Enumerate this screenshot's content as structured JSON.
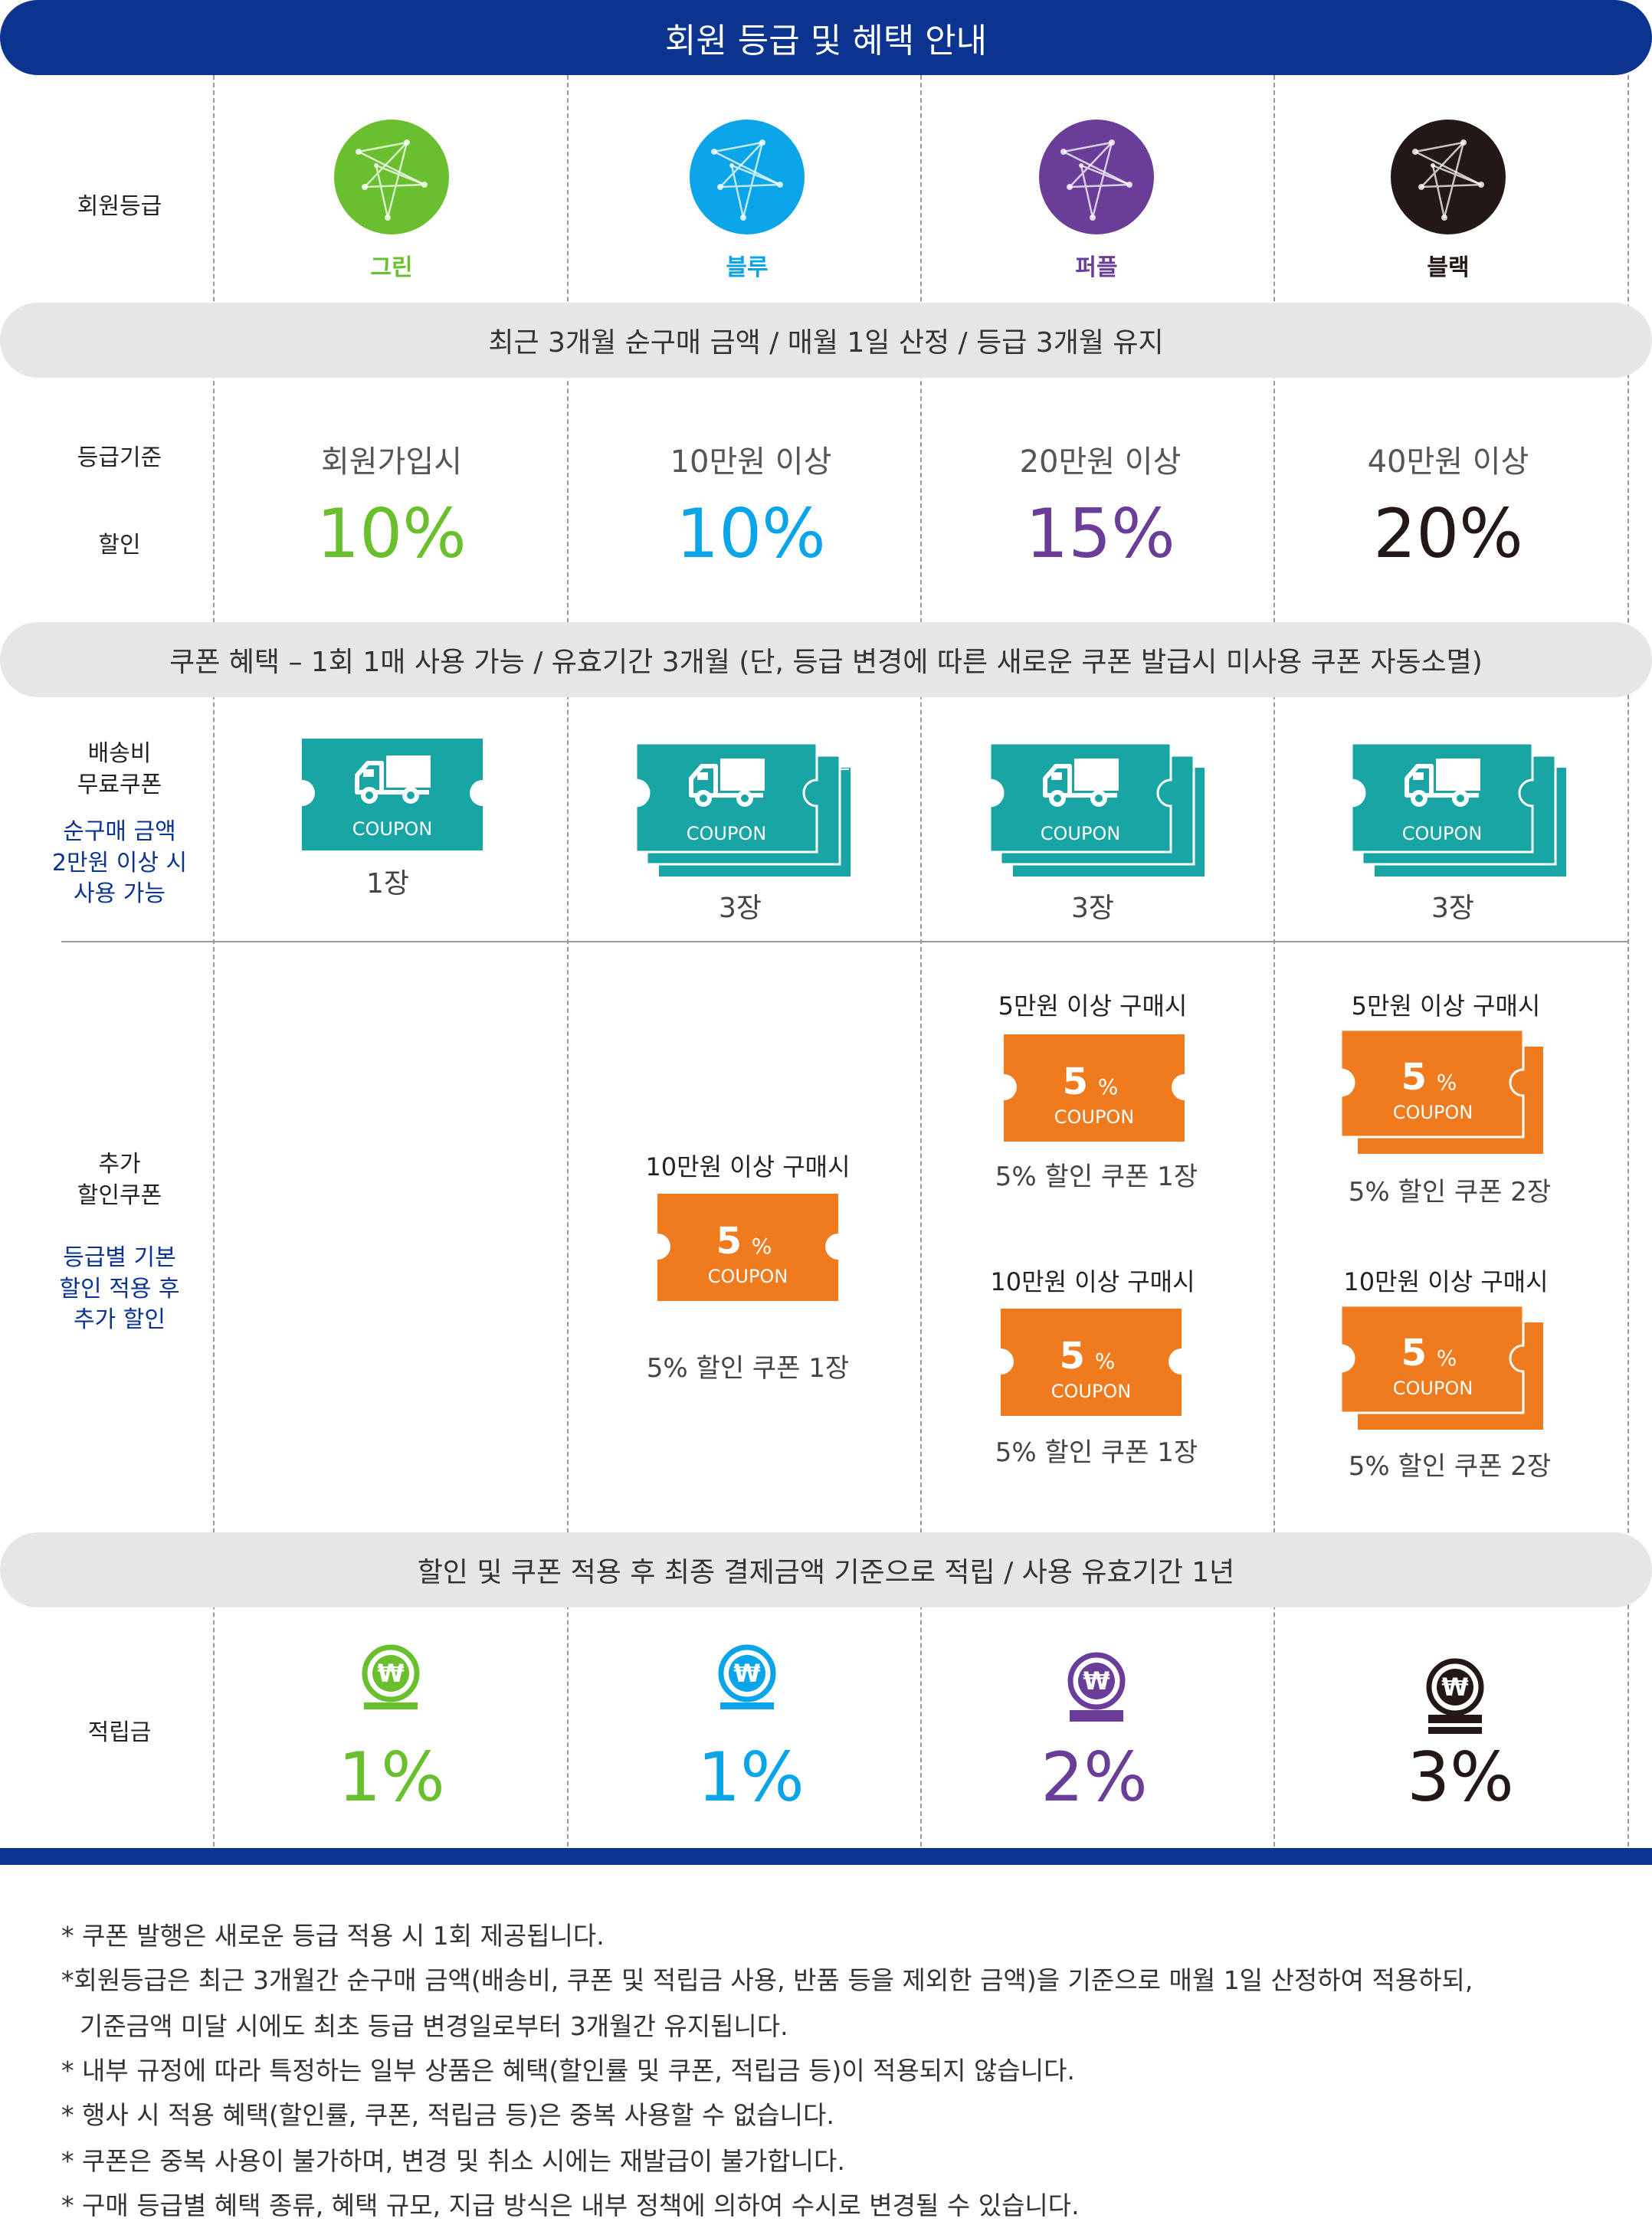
{
  "title": "회원 등급 및 혜택 안내",
  "grade_row": {
    "label": "회원등급",
    "grades": [
      {
        "name": "그린",
        "color": "#6abf2e",
        "icon": "star-emblem-icon"
      },
      {
        "name": "블루",
        "color": "#0aa4e8",
        "icon": "star-emblem-icon"
      },
      {
        "name": "퍼플",
        "color": "#6a3e98",
        "icon": "star-emblem-icon"
      },
      {
        "name": "블랙",
        "color": "#231815",
        "icon": "star-emblem-icon"
      }
    ]
  },
  "criteria_band": "최근 3개월 순구매 금액 / 매월 1일 산정 /  등급 3개월 유지",
  "criteria_row": {
    "label_criteria": "등급기준",
    "label_discount": "할인",
    "criteria": [
      "회원가입시",
      "10만원 이상",
      "20만원 이상",
      "40만원 이상"
    ],
    "discounts": [
      "10%",
      "10%",
      "15%",
      "20%"
    ]
  },
  "coupon_band": "쿠폰 혜택 – 1회 1매 사용 가능 / 유효기간 3개월 (단, 등급 변경에 따른 새로운 쿠폰 발급시 미사용 쿠폰 자동소멸)",
  "shipping_row": {
    "label_line1": "배송비",
    "label_line2": "무료쿠폰",
    "note_line1": "순구매 금액",
    "note_line2": "2만원 이상 시",
    "note_line3": "사용 가능",
    "coupon_text": "COUPON",
    "coupon_color": "#1aa5a5",
    "coupon_icon": "truck-icon",
    "quantities": [
      "1장",
      "3장",
      "3장",
      "3장"
    ]
  },
  "extra_row": {
    "label_line1": "추가",
    "label_line2": "할인쿠폰",
    "note_line1": "등급별 기본",
    "note_line2": "할인 적용 후",
    "note_line3": "추가 할인",
    "coupon_color": "#f07b1f",
    "coupon_value": "5",
    "coupon_unit": "%",
    "coupon_text": "COUPON",
    "blue": {
      "condition": "10만원 이상 구매시",
      "desc": "5% 할인 쿠폰 1장"
    },
    "purple": [
      {
        "condition": "5만원 이상 구매시",
        "desc": "5% 할인 쿠폰 1장"
      },
      {
        "condition": "10만원 이상 구매시",
        "desc": "5% 할인 쿠폰 1장"
      }
    ],
    "black": [
      {
        "condition": "5만원 이상 구매시",
        "desc": "5% 할인 쿠폰 2장"
      },
      {
        "condition": "10만원 이상 구매시",
        "desc": "5% 할인 쿠폰 2장"
      }
    ]
  },
  "points_band": "할인 및 쿠폰 적용 후 최종 결제금액 기준으로 적립 / 사용 유효기간 1년",
  "points_row": {
    "label": "적립금",
    "rates": [
      "1%",
      "1%",
      "2%",
      "3%"
    ],
    "icon": "won-coin-icon"
  },
  "notes": [
    "* 쿠폰 발행은 새로운 등급 적용 시 1회 제공됩니다.",
    "*회원등급은 최근 3개월간 순구매 금액(배송비, 쿠폰 및 적립금 사용, 반품 등을 제외한 금액)을 기준으로 매월 1일 산정하여 적용하되,",
    "기준금액 미달 시에도 최초 등급 변경일로부터 3개월간 유지됩니다.",
    "* 내부 규정에 따라 특정하는 일부 상품은 혜택(할인률 및 쿠폰, 적립금 등)이 적용되지 않습니다.",
    "* 행사 시 적용 혜택(할인률, 쿠폰, 적립금 등)은 중복 사용할 수 없습니다.",
    "* 쿠폰은 중복 사용이 불가하며, 변경 및 취소 시에는 재발급이 불가합니다.",
    "* 구매 등급별 혜택 종류, 혜택 규모, 지급 방식은 내부 정책에 의하여 수시로 변경될 수 있습니다."
  ]
}
